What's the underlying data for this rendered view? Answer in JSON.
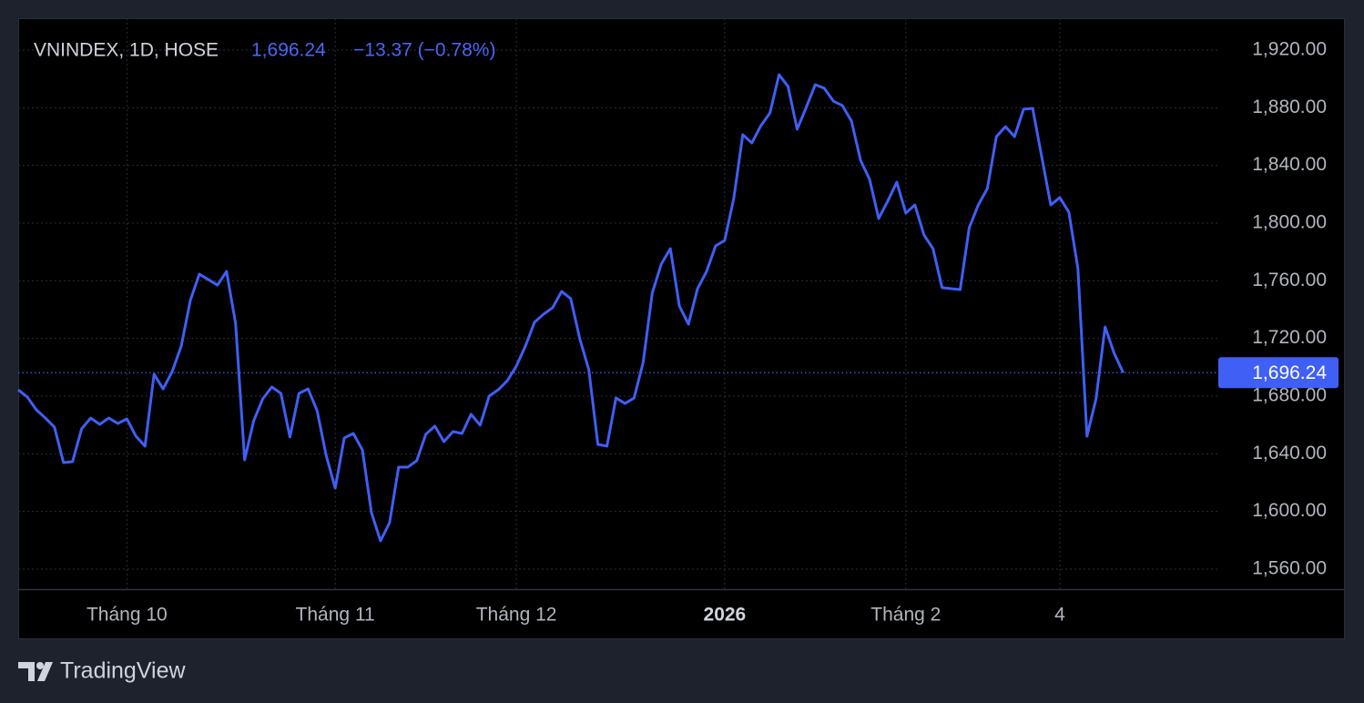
{
  "chart_data": {
    "type": "line",
    "symbol": "VNINDEX, 1D, HOSE",
    "last_label": "1,696.24",
    "change_label": "−13.37 (−0.78%)",
    "brand": "TradingView",
    "color": "#3f5ff5",
    "grid": true,
    "values": [
      1684.4,
      1679.4,
      1670.5,
      1664.8,
      1658.5,
      1633.9,
      1634.5,
      1657.3,
      1664.8,
      1660.4,
      1664.8,
      1661,
      1664.2,
      1652.2,
      1645.3,
      1695.2,
      1685,
      1697,
      1714.7,
      1746.3,
      1764.6,
      1760.8,
      1757,
      1766.5,
      1730.5,
      1635.8,
      1662.9,
      1678.1,
      1686.3,
      1681.9,
      1651.6,
      1681.9,
      1685,
      1669.9,
      1638.9,
      1616.2,
      1651,
      1654.1,
      1642.7,
      1599.2,
      1579.6,
      1592.2,
      1630.7,
      1630.7,
      1635.2,
      1653.5,
      1659.2,
      1648.4,
      1655.4,
      1654.1,
      1667.4,
      1659.8,
      1680,
      1684.4,
      1690.7,
      1700.8,
      1714.7,
      1731.2,
      1736.8,
      1741.3,
      1752.6,
      1747.6,
      1719.8,
      1698.3,
      1646.5,
      1645.3,
      1678.7,
      1674.9,
      1678.7,
      1703.4,
      1751.4,
      1771.6,
      1782.3,
      1742.5,
      1729.9,
      1754.5,
      1766.5,
      1784.2,
      1788,
      1817,
      1861.3,
      1855.6,
      1867.6,
      1876.4,
      1902.9,
      1894.7,
      1865.1,
      1880.2,
      1896,
      1893.5,
      1884.6,
      1881.5,
      1870.7,
      1843.6,
      1830.3,
      1803.2,
      1815.2,
      1828.4,
      1806.9,
      1812.6,
      1791.8,
      1782.3,
      1755.2,
      1754.5,
      1753.9,
      1796.8,
      1812.6,
      1824,
      1860,
      1866.9,
      1860,
      1879,
      1879.6,
      1846.1,
      1812.6,
      1817.7,
      1807.6,
      1768.4,
      1652.2,
      1678.1,
      1728,
      1709.7,
      1696.24
    ],
    "xlim": [
      0,
      132.5
    ],
    "xticks": [
      {
        "value": 12,
        "label": "Tháng 10"
      },
      {
        "value": 35,
        "label": "Tháng 11"
      },
      {
        "value": 55,
        "label": "Tháng 12"
      },
      {
        "value": 78,
        "label": "2026"
      },
      {
        "value": 98,
        "label": "Tháng 2"
      },
      {
        "value": 115,
        "label": "4"
      }
    ],
    "ylim": [
      1546.1,
      1942.1
    ],
    "yticks": [
      {
        "value": 1560,
        "label": "1,560.00"
      },
      {
        "value": 1600,
        "label": "1,600.00"
      },
      {
        "value": 1640,
        "label": "1,640.00"
      },
      {
        "value": 1680,
        "label": "1,680.00"
      },
      {
        "value": 1720,
        "label": "1,720.00"
      },
      {
        "value": 1760,
        "label": "1,760.00"
      },
      {
        "value": 1800,
        "label": "1,800.00"
      },
      {
        "value": 1840,
        "label": "1,840.00"
      },
      {
        "value": 1880,
        "label": "1,880.00"
      },
      {
        "value": 1920,
        "label": "1,920.00"
      }
    ]
  }
}
